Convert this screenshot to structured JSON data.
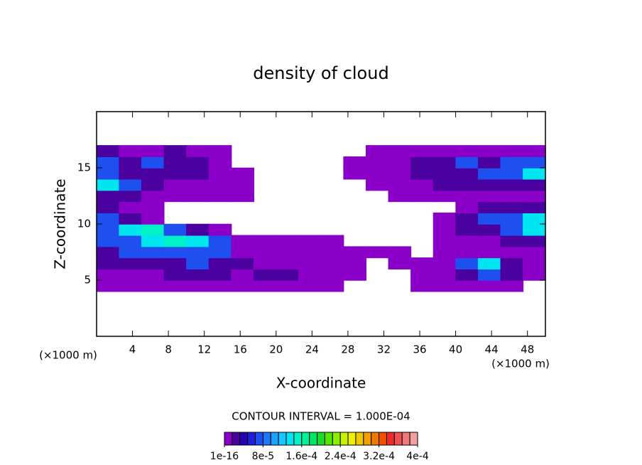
{
  "chart_data": {
    "type": "contour",
    "title": "density of cloud",
    "x_label": "X-coordinate",
    "y_label": "Z-coordinate",
    "x_unit": "(×1000 m)",
    "y_unit": "(×1000 m)",
    "contour_note": "CONTOUR INTERVAL = 1.000E-04",
    "xlim": [
      0,
      50
    ],
    "ylim": [
      0,
      20
    ],
    "xticks": [
      4,
      8,
      12,
      16,
      20,
      24,
      28,
      32,
      36,
      40,
      44,
      48
    ],
    "yticks": [
      5,
      10,
      15
    ],
    "x": [
      1.25,
      3.75,
      6.25,
      8.75,
      11.25,
      13.75,
      16.25,
      18.75,
      21.25,
      23.75,
      26.25,
      28.75,
      31.25,
      33.75,
      36.25,
      38.75,
      41.25,
      43.75,
      46.25,
      48.75
    ],
    "z": [
      4.5,
      5.5,
      6.5,
      7.5,
      8.5,
      9.5,
      10.5,
      11.5,
      12.5,
      13.5,
      14.5,
      15.5,
      16.5
    ],
    "values": [
      [
        1e-05,
        1e-05,
        1e-05,
        1e-05,
        1e-05,
        1e-05,
        1e-05,
        1e-05,
        1e-05,
        1e-05,
        1e-05,
        0,
        0,
        0,
        1e-05,
        1e-05,
        1e-05,
        1e-05,
        1e-05,
        0
      ],
      [
        1e-05,
        1e-05,
        1e-05,
        3e-05,
        3e-05,
        3e-05,
        1e-05,
        3e-05,
        3e-05,
        1e-05,
        1e-05,
        1e-05,
        0,
        0,
        1e-05,
        1e-05,
        3e-05,
        7e-05,
        3e-05,
        1e-05
      ],
      [
        3e-05,
        3e-05,
        3e-05,
        3e-05,
        7e-05,
        3e-05,
        3e-05,
        1e-05,
        1e-05,
        1e-05,
        1e-05,
        1e-05,
        0,
        1e-05,
        1e-05,
        1e-05,
        7e-05,
        0.00013,
        3e-05,
        1e-05
      ],
      [
        3e-05,
        7e-05,
        7e-05,
        7e-05,
        7e-05,
        7e-05,
        1e-05,
        1e-05,
        1e-05,
        1e-05,
        1e-05,
        1e-05,
        1e-05,
        1e-05,
        0,
        1e-05,
        1e-05,
        1e-05,
        1e-05,
        1e-05
      ],
      [
        7e-05,
        7e-05,
        0.00013,
        0.00015,
        0.00013,
        7e-05,
        1e-05,
        1e-05,
        1e-05,
        1e-05,
        1e-05,
        0,
        0,
        0,
        0,
        1e-05,
        1e-05,
        1e-05,
        3e-05,
        3e-05
      ],
      [
        7e-05,
        0.00013,
        0.00015,
        7e-05,
        3e-05,
        1e-05,
        0,
        0,
        0,
        0,
        0,
        0,
        0,
        0,
        0,
        1e-05,
        3e-05,
        3e-05,
        7e-05,
        0.00013
      ],
      [
        7e-05,
        3e-05,
        1e-05,
        0,
        0,
        0,
        0,
        0,
        0,
        0,
        0,
        0,
        0,
        0,
        0,
        1e-05,
        3e-05,
        7e-05,
        7e-05,
        0.00013
      ],
      [
        3e-05,
        1e-05,
        1e-05,
        0,
        0,
        0,
        0,
        0,
        0,
        0,
        0,
        0,
        0,
        0,
        0,
        0,
        1e-05,
        3e-05,
        3e-05,
        3e-05
      ],
      [
        3e-05,
        3e-05,
        1e-05,
        1e-05,
        1e-05,
        1e-05,
        1e-05,
        0,
        0,
        0,
        0,
        0,
        0,
        1e-05,
        1e-05,
        1e-05,
        1e-05,
        1e-05,
        1e-05,
        1e-05
      ],
      [
        0.00013,
        7e-05,
        3e-05,
        1e-05,
        1e-05,
        1e-05,
        1e-05,
        0,
        0,
        0,
        0,
        0,
        1e-05,
        1e-05,
        1e-05,
        3e-05,
        3e-05,
        3e-05,
        3e-05,
        3e-05
      ],
      [
        7e-05,
        3e-05,
        3e-05,
        3e-05,
        3e-05,
        1e-05,
        1e-05,
        0,
        0,
        0,
        0,
        1e-05,
        1e-05,
        1e-05,
        3e-05,
        3e-05,
        3e-05,
        7e-05,
        7e-05,
        0.00013
      ],
      [
        7e-05,
        3e-05,
        7e-05,
        3e-05,
        3e-05,
        1e-05,
        0,
        0,
        0,
        0,
        0,
        1e-05,
        1e-05,
        1e-05,
        3e-05,
        3e-05,
        7e-05,
        3e-05,
        7e-05,
        7e-05
      ],
      [
        3e-05,
        1e-05,
        1e-05,
        3e-05,
        1e-05,
        1e-05,
        0,
        0,
        0,
        0,
        0,
        0,
        1e-05,
        1e-05,
        1e-05,
        1e-05,
        1e-05,
        1e-05,
        1e-05,
        1e-05
      ]
    ],
    "level_step": 1.6e-05,
    "colors": [
      "#8a00c8",
      "#4b00a0",
      "#2800b4",
      "#1e1edc",
      "#1e50f0",
      "#1e78ff",
      "#1ea0ff",
      "#14c8ff",
      "#00e6f0",
      "#00f0c8",
      "#00f096",
      "#00e664",
      "#14dc28",
      "#50e600",
      "#8cf000",
      "#c8f000",
      "#f0f000",
      "#f0c800",
      "#f0a000",
      "#f07800",
      "#f05000",
      "#f02828",
      "#f05050",
      "#f07878",
      "#f0a0a0"
    ],
    "colorbar_lim": [
      0,
      0.0004
    ],
    "colorbar_ticks": [
      {
        "value": 1e-16,
        "label": "1e-16"
      },
      {
        "value": 8e-05,
        "label": "8e-5"
      },
      {
        "value": 0.00016,
        "label": "1.6e-4"
      },
      {
        "value": 0.00024,
        "label": "2.4e-4"
      },
      {
        "value": 0.00032,
        "label": "3.2e-4"
      },
      {
        "value": 0.0004,
        "label": "4e-4"
      }
    ]
  }
}
